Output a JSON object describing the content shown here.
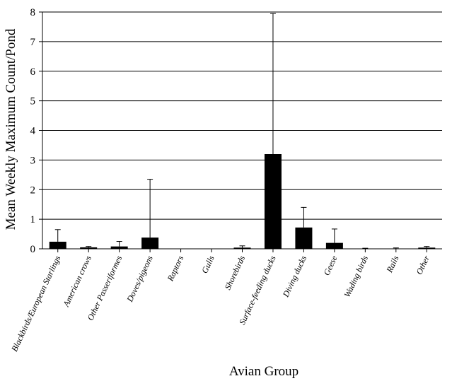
{
  "chart_data": {
    "type": "bar",
    "xlabel": "Avian Group",
    "ylabel": "Mean Weekly Maximum Count/Pond",
    "ylim": [
      0,
      8
    ],
    "yticks": [
      0,
      1,
      2,
      3,
      4,
      5,
      6,
      7,
      8
    ],
    "grid": true,
    "categories": [
      "Blackbirds/European Starlings",
      "American crows",
      "Other Passeriformes",
      "Doves/pigeons",
      "Raptors",
      "Gulls",
      "Shorebirds",
      "Surface-feeding ducks",
      "Diving ducks",
      "Geese",
      "Wading birds",
      "Rails",
      "Other"
    ],
    "values": [
      0.24,
      0.05,
      0.08,
      0.38,
      0,
      0,
      0.04,
      3.2,
      0.72,
      0.2,
      0.01,
      0,
      0.04
    ],
    "error_upper": [
      0.65,
      0.08,
      0.25,
      2.35,
      0,
      0,
      0.1,
      7.95,
      1.4,
      0.67,
      0.02,
      0.03,
      0.08
    ],
    "bar_color": "#000000",
    "grid_color": "#000000"
  }
}
